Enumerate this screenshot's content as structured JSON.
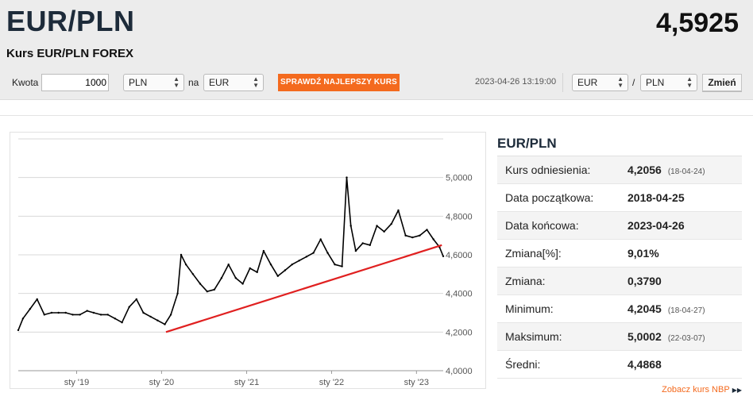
{
  "header": {
    "pair": "EUR/PLN",
    "rate": "4,5925",
    "subtitle": "Kurs EUR/PLN FOREX"
  },
  "converter": {
    "amount_label": "Kwota",
    "amount_value": "1000",
    "from_currency": "PLN",
    "na_label": "na",
    "to_currency": "EUR",
    "best_rate_button": "SPRAWDŹ NAJLEPSZY KURS",
    "timestamp": "2023-04-26 13:19:00",
    "pair_base": "EUR",
    "slash": "/",
    "pair_quote": "PLN",
    "change_button": "Zmień"
  },
  "panel": {
    "title": "EUR/PLN",
    "rows": [
      {
        "label": "Kurs odniesienia:",
        "value": "4,2056",
        "date": "(18-04-24)"
      },
      {
        "label": "Data początkowa:",
        "value": "2018-04-25",
        "date": ""
      },
      {
        "label": "Data końcowa:",
        "value": "2023-04-26",
        "date": ""
      },
      {
        "label": "Zmiana[%]:",
        "value": "9,01%",
        "date": ""
      },
      {
        "label": "Zmiana:",
        "value": "0,3790",
        "date": ""
      },
      {
        "label": "Minimum:",
        "value": "4,2045",
        "date": "(18-04-27)"
      },
      {
        "label": "Maksimum:",
        "value": "5,0002",
        "date": "(22-03-07)"
      },
      {
        "label": "Średni:",
        "value": "4,4868",
        "date": ""
      }
    ],
    "nbp_link": "Zobacz kurs NBP"
  },
  "chart_data": {
    "type": "line",
    "y_ticks": [
      "5,0000",
      "4,8000",
      "4,6000",
      "4,4000",
      "4,2000",
      "4,0000"
    ],
    "x_ticks": [
      "sty '19",
      "sty '20",
      "sty '21",
      "sty '22",
      "sty '23"
    ],
    "ylim": [
      4.0,
      5.2
    ],
    "xlim": [
      "2018-04-25",
      "2023-04-26"
    ],
    "series": [
      {
        "x": [
          "2018-04-25",
          "2018-05-15",
          "2018-06-15",
          "2018-07-15",
          "2018-08-15",
          "2018-09-15",
          "2018-10-15",
          "2018-11-15",
          "2018-12-15",
          "2019-01-15",
          "2019-02-15",
          "2019-03-15",
          "2019-04-15",
          "2019-05-15",
          "2019-06-15",
          "2019-07-15",
          "2019-08-15",
          "2019-09-15",
          "2019-10-15",
          "2019-11-15",
          "2019-12-15",
          "2020-01-15",
          "2020-02-10",
          "2020-03-10",
          "2020-03-25",
          "2020-04-15",
          "2020-05-15",
          "2020-06-15",
          "2020-07-15",
          "2020-08-15",
          "2020-09-15",
          "2020-10-15",
          "2020-11-15",
          "2020-12-15",
          "2021-01-15",
          "2021-02-15",
          "2021-03-15",
          "2021-04-15",
          "2021-05-15",
          "2021-06-15",
          "2021-07-15",
          "2021-08-15",
          "2021-09-15",
          "2021-10-15",
          "2021-11-15",
          "2021-12-15",
          "2022-01-15",
          "2022-02-15",
          "2022-03-07",
          "2022-03-25",
          "2022-04-15",
          "2022-05-15",
          "2022-06-15",
          "2022-07-15",
          "2022-08-15",
          "2022-09-15",
          "2022-10-15",
          "2022-11-15",
          "2022-12-15",
          "2023-01-15",
          "2023-02-15",
          "2023-03-15",
          "2023-04-10",
          "2023-04-26"
        ],
        "values": [
          4.21,
          4.27,
          4.32,
          4.37,
          4.29,
          4.3,
          4.3,
          4.3,
          4.29,
          4.29,
          4.31,
          4.3,
          4.29,
          4.29,
          4.27,
          4.25,
          4.33,
          4.37,
          4.3,
          4.28,
          4.26,
          4.24,
          4.29,
          4.4,
          4.6,
          4.55,
          4.5,
          4.45,
          4.41,
          4.42,
          4.48,
          4.55,
          4.48,
          4.45,
          4.53,
          4.51,
          4.62,
          4.55,
          4.49,
          4.52,
          4.55,
          4.57,
          4.59,
          4.61,
          4.68,
          4.61,
          4.55,
          4.54,
          5.0002,
          4.75,
          4.62,
          4.66,
          4.65,
          4.75,
          4.72,
          4.76,
          4.83,
          4.7,
          4.69,
          4.7,
          4.73,
          4.68,
          4.64,
          4.5925
        ]
      }
    ],
    "trendline": {
      "from": {
        "x": "2020-01-20",
        "y": 4.2
      },
      "to": {
        "x": "2023-04-20",
        "y": 4.65
      }
    }
  }
}
